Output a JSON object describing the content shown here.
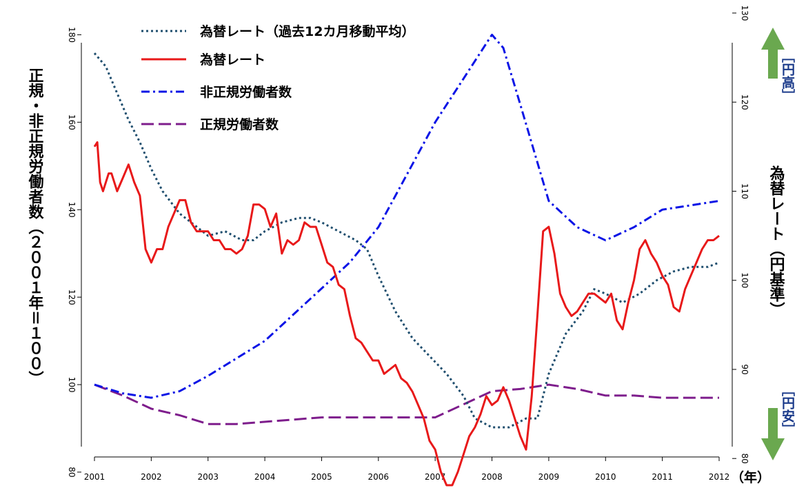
{
  "chart_data": {
    "type": "line",
    "xlabel": "（年）",
    "ylabel_left": "正規・非正規労働者数（２００１年＝１００）",
    "ylabel_right": "為替レート（円基準）",
    "x_ticks": [
      "2001",
      "2002",
      "2003",
      "2004",
      "2005",
      "2006",
      "2007",
      "2008",
      "2009",
      "2010",
      "2011",
      "2012"
    ],
    "xlim": [
      2001,
      2012
    ],
    "ylim_left": [
      77,
      187
    ],
    "ylim_right": [
      77,
      131
    ],
    "yticks_left": [
      "80",
      "100",
      "120",
      "140",
      "160",
      "180"
    ],
    "yticks_right": [
      "80",
      "90",
      "100",
      "110",
      "120",
      "130"
    ],
    "annotations": {
      "up": "［円高］",
      "down": "［円安］"
    },
    "colors": {
      "arrow": "#6aa84f"
    },
    "series": [
      {
        "name": "為替レート（過去12カ月移動平均）",
        "axis": "right",
        "color": "#1f4e6e",
        "style": "dotted",
        "x": [
          2001.0,
          2001.2,
          2001.4,
          2001.6,
          2001.8,
          2002.0,
          2002.2,
          2002.5,
          2002.8,
          2003.0,
          2003.3,
          2003.6,
          2003.8,
          2004.0,
          2004.3,
          2004.6,
          2004.8,
          2005.0,
          2005.3,
          2005.6,
          2005.8,
          2006.0,
          2006.3,
          2006.6,
          2006.9,
          2007.2,
          2007.5,
          2007.7,
          2008.0,
          2008.3,
          2008.6,
          2008.8,
          2009.0,
          2009.3,
          2009.6,
          2009.8,
          2010.0,
          2010.3,
          2010.6,
          2010.9,
          2011.2,
          2011.5,
          2011.8,
          2012.0
        ],
        "y": [
          125.5,
          124.0,
          121.0,
          118.0,
          115.5,
          112.5,
          110.0,
          107.5,
          106.0,
          105.0,
          105.5,
          104.5,
          104.5,
          105.5,
          106.5,
          107.0,
          107.0,
          106.5,
          105.5,
          104.5,
          103.5,
          100.5,
          96.5,
          93.5,
          91.5,
          89.5,
          87.0,
          84.5,
          83.5,
          83.5,
          84.5,
          84.5,
          89.5,
          94.0,
          96.5,
          99.0,
          98.5,
          97.5,
          98.5,
          100.0,
          101.0,
          101.5,
          101.5,
          102.0
        ]
      },
      {
        "name": "為替レート",
        "axis": "right",
        "color": "#e8191a",
        "style": "solid",
        "x": [
          2001.0,
          2001.05,
          2001.1,
          2001.15,
          2001.25,
          2001.3,
          2001.4,
          2001.5,
          2001.6,
          2001.7,
          2001.8,
          2001.9,
          2002.0,
          2002.1,
          2002.2,
          2002.3,
          2002.4,
          2002.5,
          2002.6,
          2002.7,
          2002.8,
          2002.9,
          2003.0,
          2003.1,
          2003.2,
          2003.3,
          2003.4,
          2003.5,
          2003.6,
          2003.7,
          2003.8,
          2003.9,
          2004.0,
          2004.1,
          2004.2,
          2004.3,
          2004.4,
          2004.5,
          2004.6,
          2004.7,
          2004.8,
          2004.9,
          2005.0,
          2005.1,
          2005.2,
          2005.3,
          2005.4,
          2005.5,
          2005.6,
          2005.7,
          2005.8,
          2005.9,
          2006.0,
          2006.1,
          2006.2,
          2006.3,
          2006.4,
          2006.5,
          2006.6,
          2006.7,
          2006.8,
          2006.9,
          2007.0,
          2007.1,
          2007.2,
          2007.3,
          2007.4,
          2007.5,
          2007.6,
          2007.7,
          2007.8,
          2007.9,
          2008.0,
          2008.1,
          2008.2,
          2008.3,
          2008.4,
          2008.5,
          2008.6,
          2008.7,
          2008.8,
          2008.9,
          2009.0,
          2009.1,
          2009.2,
          2009.3,
          2009.4,
          2009.5,
          2009.6,
          2009.7,
          2009.8,
          2009.9,
          2010.0,
          2010.1,
          2010.2,
          2010.3,
          2010.4,
          2010.5,
          2010.6,
          2010.7,
          2010.8,
          2010.9,
          2011.0,
          2011.1,
          2011.2,
          2011.3,
          2011.4,
          2011.5,
          2011.6,
          2011.7,
          2011.8,
          2011.9,
          2012.0
        ],
        "y": [
          115.0,
          115.5,
          111.0,
          110.0,
          112.0,
          112.0,
          110.0,
          111.5,
          113.0,
          111.0,
          109.5,
          103.5,
          102.0,
          103.5,
          103.5,
          106.0,
          107.5,
          109.0,
          109.0,
          106.5,
          105.5,
          105.5,
          105.5,
          104.5,
          104.5,
          103.5,
          103.5,
          103.0,
          103.5,
          105.0,
          108.5,
          108.5,
          108.0,
          106.0,
          107.5,
          103.0,
          104.5,
          104.0,
          104.5,
          106.5,
          106.0,
          106.0,
          104.0,
          102.0,
          101.5,
          99.5,
          99.0,
          96.0,
          93.5,
          93.0,
          92.0,
          91.0,
          91.0,
          89.5,
          90.0,
          90.5,
          89.0,
          88.5,
          87.5,
          86.0,
          84.5,
          82.0,
          81.0,
          78.5,
          77.0,
          77.0,
          78.5,
          80.5,
          82.5,
          83.5,
          85.0,
          87.0,
          86.0,
          86.5,
          88.0,
          86.5,
          84.5,
          82.5,
          81.0,
          87.0,
          96.0,
          105.5,
          106.0,
          103.0,
          98.5,
          97.0,
          96.0,
          96.5,
          97.5,
          98.5,
          98.5,
          98.0,
          97.5,
          98.5,
          95.5,
          94.5,
          97.5,
          100.0,
          103.5,
          104.5,
          103.0,
          102.0,
          100.5,
          99.5,
          97.0,
          96.5,
          99.0,
          100.5,
          102.0,
          103.5,
          104.5,
          104.5,
          105.0
        ]
      },
      {
        "name": "非正規労働者数",
        "axis": "left",
        "color": "#0a14e6",
        "style": "dashdot",
        "x": [
          2001.0,
          2001.5,
          2002.0,
          2002.5,
          2003.0,
          2003.5,
          2004.0,
          2004.5,
          2005.0,
          2005.5,
          2006.0,
          2006.5,
          2007.0,
          2007.5,
          2008.0,
          2008.2,
          2008.5,
          2009.0,
          2009.5,
          2010.0,
          2010.5,
          2011.0,
          2011.5,
          2012.0
        ],
        "y": [
          100,
          98,
          97,
          98.5,
          102,
          106,
          110,
          116,
          122,
          128,
          136,
          148,
          160,
          170,
          180,
          177,
          164,
          142,
          136,
          133,
          136,
          140,
          141,
          142
        ]
      },
      {
        "name": "正規労働者数",
        "axis": "left",
        "color": "#7e1d8c",
        "style": "dashed",
        "x": [
          2001.0,
          2001.5,
          2002.0,
          2002.5,
          2003.0,
          2003.5,
          2004.0,
          2004.5,
          2005.0,
          2005.5,
          2006.0,
          2006.5,
          2007.0,
          2007.5,
          2008.0,
          2008.5,
          2009.0,
          2009.5,
          2010.0,
          2010.5,
          2011.0,
          2011.5,
          2012.0
        ],
        "y": [
          100,
          97.5,
          94.5,
          93,
          91,
          91,
          91.5,
          92,
          92.5,
          92.5,
          92.5,
          92.5,
          92.5,
          95.5,
          98.5,
          99,
          100,
          99,
          97.5,
          97.5,
          97,
          97,
          97
        ]
      }
    ]
  }
}
